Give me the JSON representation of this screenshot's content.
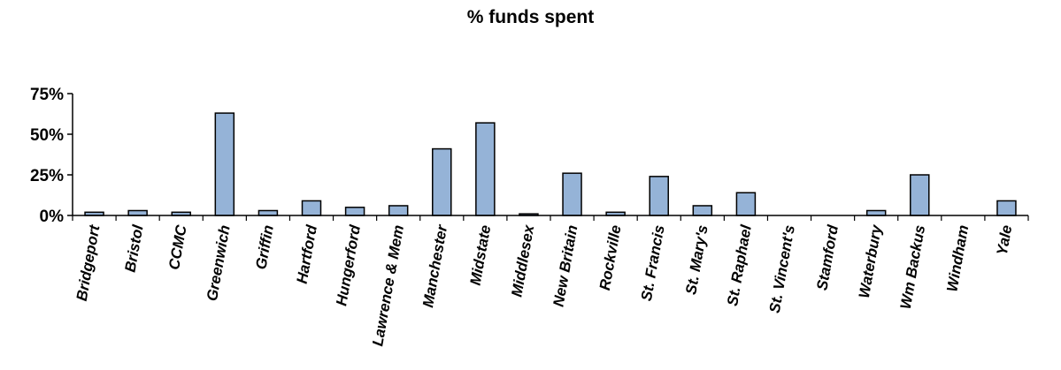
{
  "chart_data": {
    "type": "bar",
    "title": "% funds spent",
    "xlabel": "",
    "ylabel": "",
    "ylim": [
      0,
      75
    ],
    "yticks": [
      0,
      25,
      50,
      75
    ],
    "ytick_labels": [
      "0%",
      "25%",
      "50%",
      "75%"
    ],
    "grid": false,
    "legend": "none",
    "bar_color": "#95B3D7",
    "bar_edge_color": "#000000",
    "categories": [
      "Bridgeport",
      "Bristol",
      "CCMC",
      "Greenwich",
      "Griffin",
      "Hartford",
      "Hungerford",
      "Lawrence & Mem",
      "Manchester",
      "Midstate",
      "Middlesex",
      "New Britain",
      "Rockville",
      "St. Francis",
      "St. Mary's",
      "St. Raphael",
      "St. Vincent's",
      "Stamford",
      "Waterbury",
      "Wm Backus",
      "Windham",
      "Yale"
    ],
    "values": [
      2,
      3,
      2,
      63,
      3,
      9,
      5,
      6,
      41,
      57,
      1,
      26,
      2,
      24,
      6,
      14,
      0,
      0,
      3,
      25,
      0,
      9
    ]
  }
}
